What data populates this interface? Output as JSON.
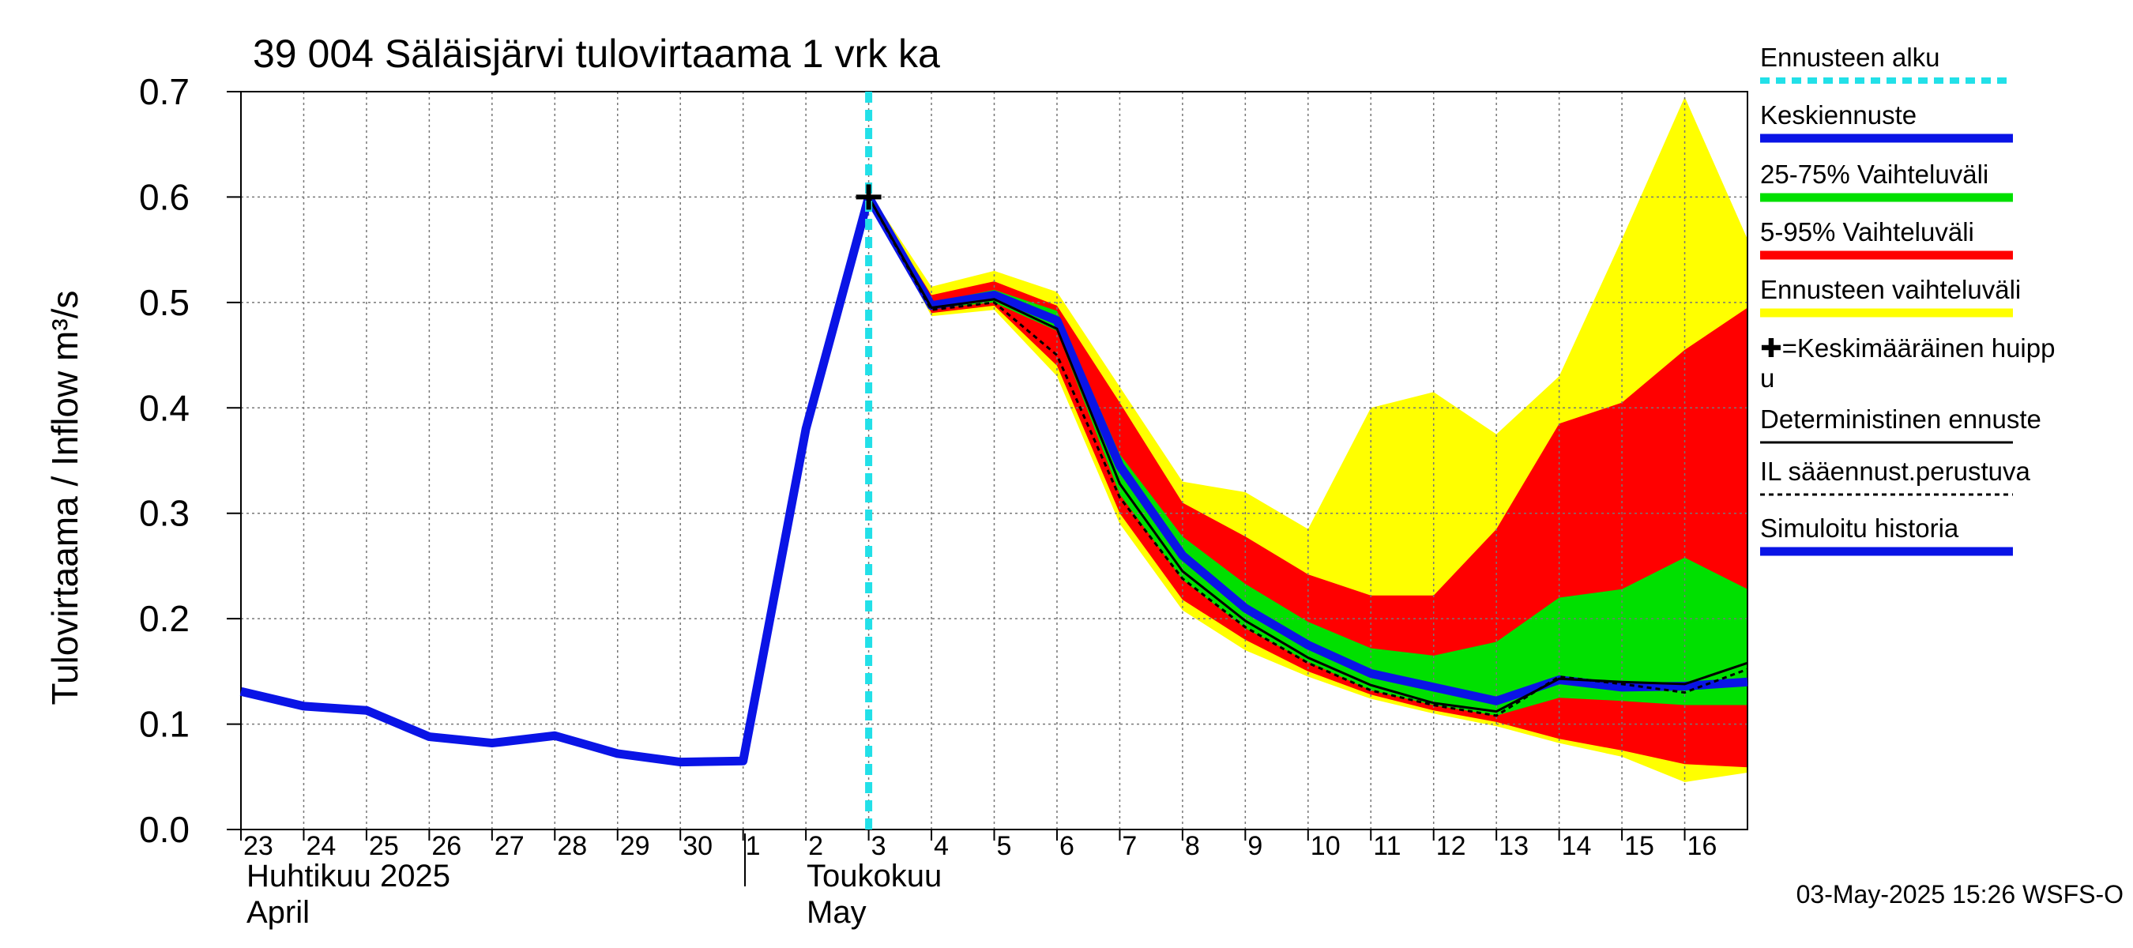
{
  "title": "39 004 Säläisjärvi tulovirtaama 1 vrk ka",
  "y_axis_label": "Tulovirtaama / Inflow    m³/s",
  "months": [
    {
      "fi": "Huhtikuu  2025",
      "en": "April"
    },
    {
      "fi": "Toukokuu",
      "en": "May"
    }
  ],
  "timestamp": "03-May-2025 15:26 WSFS-O",
  "legend": [
    {
      "label": "Ennusteen alku",
      "key": "start",
      "color": "#22e0e8",
      "style": "dashed"
    },
    {
      "label": "Keskiennuste",
      "key": "median",
      "color": "#0a14e6",
      "style": "solid"
    },
    {
      "label": "25-75% Vaihteluväli",
      "key": "p25_75",
      "color": "#00e000",
      "style": "solid"
    },
    {
      "label": "5-95% Vaihteluväli",
      "key": "p5_95",
      "color": "#ff0000",
      "style": "solid"
    },
    {
      "label": "Ennusteen vaihteluväli",
      "key": "range",
      "color": "#ffff00",
      "style": "solid"
    },
    {
      "label": "✚=Keskimääräinen huippu",
      "key": "peak",
      "color": "#000000",
      "style": "none"
    },
    {
      "label": "Deterministinen ennuste",
      "key": "det",
      "color": "#000000",
      "style": "thin"
    },
    {
      "label": "IL sääennust.perustuva",
      "key": "il",
      "color": "#000000",
      "style": "dotted"
    },
    {
      "label": "Simuloitu historia",
      "key": "hist",
      "color": "#0a14e6",
      "style": "solid"
    }
  ],
  "chart_data": {
    "type": "area",
    "title": "39 004 Säläisjärvi tulovirtaama 1 vrk ka",
    "ylabel": "Tulovirtaama / Inflow m³/s",
    "ylim": [
      0,
      0.7
    ],
    "yticks": [
      "0.0",
      "0.1",
      "0.2",
      "0.3",
      "0.4",
      "0.5",
      "0.6",
      "0.7"
    ],
    "x_day_labels": [
      "23",
      "24",
      "25",
      "26",
      "27",
      "28",
      "29",
      "30",
      "1",
      "2",
      "3",
      "4",
      "5",
      "6",
      "7",
      "8",
      "9",
      "10",
      "11",
      "12",
      "13",
      "14",
      "15",
      "16"
    ],
    "xlim_days": [
      0,
      24
    ],
    "forecast_start_day": 10,
    "grid": true,
    "legend_placement": "right",
    "series": [
      {
        "name": "Simuloitu historia",
        "x": [
          0,
          1,
          2,
          3,
          4,
          5,
          6,
          7,
          8,
          9,
          10
        ],
        "values": [
          0.131,
          0.117,
          0.113,
          0.088,
          0.082,
          0.089,
          0.072,
          0.064,
          0.065,
          0.38,
          0.6
        ]
      },
      {
        "name": "Keskiennuste",
        "x": [
          10,
          11,
          12,
          13,
          14,
          15,
          16,
          17,
          18,
          19,
          20,
          21,
          22,
          23,
          24
        ],
        "values": [
          0.6,
          0.497,
          0.507,
          0.483,
          0.345,
          0.26,
          0.21,
          0.175,
          0.148,
          0.135,
          0.122,
          0.142,
          0.135,
          0.136,
          0.14
        ]
      },
      {
        "name": "Deterministinen ennuste",
        "x": [
          10,
          11,
          12,
          13,
          14,
          15,
          16,
          17,
          18,
          19,
          20,
          21,
          22,
          23,
          24
        ],
        "values": [
          0.6,
          0.495,
          0.503,
          0.475,
          0.328,
          0.245,
          0.198,
          0.163,
          0.137,
          0.12,
          0.112,
          0.143,
          0.14,
          0.138,
          0.158
        ]
      },
      {
        "name": "IL sääennust.perustuva",
        "x": [
          10,
          11,
          12,
          13,
          14,
          15,
          16,
          17,
          18,
          19,
          20,
          21,
          22,
          23,
          24
        ],
        "values": [
          0.6,
          0.493,
          0.5,
          0.45,
          0.315,
          0.238,
          0.192,
          0.158,
          0.132,
          0.118,
          0.108,
          0.145,
          0.138,
          0.13,
          0.152
        ]
      },
      {
        "name": "Ennusteen vaihteluväli",
        "x": [
          10,
          11,
          12,
          13,
          14,
          15,
          16,
          17,
          18,
          19,
          20,
          21,
          22,
          23,
          24
        ],
        "lower": [
          0.6,
          0.487,
          0.493,
          0.43,
          0.29,
          0.208,
          0.17,
          0.145,
          0.124,
          0.11,
          0.098,
          0.082,
          0.069,
          0.045,
          0.054
        ],
        "upper": [
          0.605,
          0.515,
          0.53,
          0.51,
          0.42,
          0.33,
          0.32,
          0.285,
          0.4,
          0.415,
          0.375,
          0.43,
          0.56,
          0.695,
          0.56
        ]
      },
      {
        "name": "5-95% Vaihteluväli",
        "x": [
          10,
          11,
          12,
          13,
          14,
          15,
          16,
          17,
          18,
          19,
          20,
          21,
          22,
          23,
          24
        ],
        "lower": [
          0.6,
          0.49,
          0.497,
          0.44,
          0.3,
          0.218,
          0.18,
          0.15,
          0.128,
          0.113,
          0.102,
          0.086,
          0.075,
          0.062,
          0.059
        ],
        "upper": [
          0.603,
          0.507,
          0.52,
          0.497,
          0.405,
          0.31,
          0.278,
          0.242,
          0.222,
          0.222,
          0.285,
          0.385,
          0.405,
          0.455,
          0.495
        ]
      },
      {
        "name": "25-75% Vaihteluväli",
        "x": [
          10,
          11,
          12,
          13,
          14,
          15,
          16,
          17,
          18,
          19,
          20,
          21,
          22,
          23,
          24
        ],
        "lower": [
          0.6,
          0.494,
          0.5,
          0.473,
          0.318,
          0.237,
          0.191,
          0.159,
          0.132,
          0.118,
          0.108,
          0.125,
          0.122,
          0.118,
          0.118
        ],
        "upper": [
          0.6,
          0.5,
          0.512,
          0.492,
          0.356,
          0.278,
          0.233,
          0.197,
          0.172,
          0.165,
          0.178,
          0.22,
          0.228,
          0.258,
          0.228
        ]
      }
    ],
    "mean_peak": {
      "name": "Keskimääräinen huippu",
      "x": 10,
      "y": 0.6
    }
  }
}
